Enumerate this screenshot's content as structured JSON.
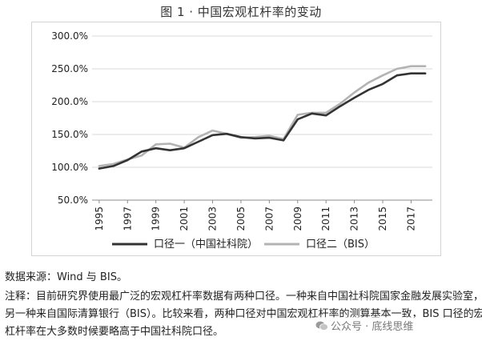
{
  "figure_title": "图 1 · 中国宏观杠杆率的变动",
  "source_text": "数据来源：Wind 与 BIS。",
  "note_lines": [
    "注释：目前研究界使用最广泛的宏观杠杆率数据有两种口径。一种来自中国社科院国家金融发展实验室，",
    "另一种来自国际清算银行（BIS）。比较来看，两种口径对中国宏观杠杆率的测算基本一致，BIS 口径的宏观",
    "杠杆率在大多数时候要略高于中国社科院口径。"
  ],
  "watermark_text": "公众号 · 底线思维",
  "chart_data": {
    "type": "line",
    "title": "",
    "xlabel": "",
    "ylabel": "",
    "xlim": [
      1994.5,
      2018.5
    ],
    "ylim": [
      50,
      300
    ],
    "y_ticks": [
      50,
      100,
      150,
      200,
      250,
      300
    ],
    "y_tick_labels": [
      "50.0%",
      "100.0%",
      "150.0%",
      "200.0%",
      "250.0%",
      "300.0%"
    ],
    "x_ticks": [
      1995,
      1997,
      1999,
      2001,
      2003,
      2005,
      2007,
      2009,
      2011,
      2013,
      2015,
      2017
    ],
    "x_tick_labels": [
      "1995",
      "1997",
      "1999",
      "2001",
      "2003",
      "2005",
      "2007",
      "2009",
      "2011",
      "2013",
      "2015",
      "2017"
    ],
    "grid": "horizontal",
    "legend_position": "bottom",
    "x": [
      1995,
      1996,
      1997,
      1998,
      1999,
      2000,
      2001,
      2002,
      2003,
      2004,
      2005,
      2006,
      2007,
      2008,
      2009,
      2010,
      2011,
      2012,
      2013,
      2014,
      2015,
      2016,
      2017,
      2018
    ],
    "series": [
      {
        "name": "口径一（中国社科院）",
        "color": "#333333",
        "values": [
          98,
          102,
          111,
          124,
          129,
          126,
          129,
          139,
          149,
          151,
          146,
          144,
          145,
          141,
          173,
          182,
          179,
          193,
          206,
          218,
          227,
          240,
          243,
          243
        ]
      },
      {
        "name": "口径二（BIS）",
        "color": "#b3b3b3",
        "values": [
          102,
          105,
          112,
          118,
          135,
          136,
          130,
          146,
          156,
          151,
          145,
          146,
          148,
          143,
          180,
          183,
          183,
          197,
          214,
          229,
          240,
          250,
          254,
          254
        ]
      }
    ]
  }
}
